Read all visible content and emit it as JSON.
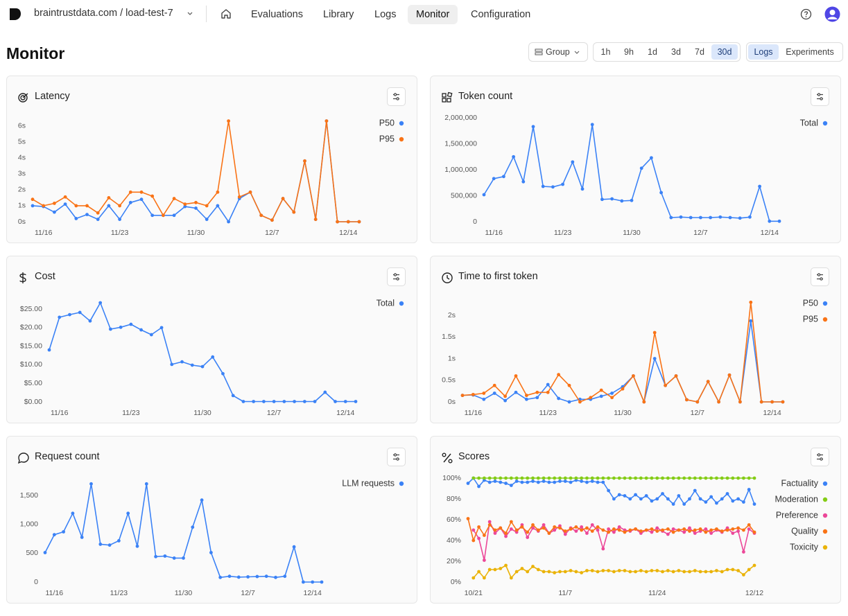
{
  "header": {
    "org_project": "braintrustdata.com / load-test-7",
    "nav": [
      "Evaluations",
      "Library",
      "Logs",
      "Monitor",
      "Configuration"
    ]
  },
  "page": {
    "title": "Monitor",
    "group": "Group",
    "ranges": [
      "1h",
      "9h",
      "1d",
      "3d",
      "7d",
      "30d"
    ],
    "views": [
      "Logs",
      "Experiments"
    ]
  },
  "chart_data": [
    {
      "type": "line",
      "title": "Latency",
      "legend": "right",
      "categories": [
        null,
        "11/16",
        null,
        null,
        null,
        null,
        null,
        null,
        "11/23",
        null,
        null,
        null,
        null,
        null,
        null,
        "11/30",
        null,
        null,
        null,
        null,
        null,
        null,
        "12/7",
        null,
        null,
        null,
        null,
        null,
        null,
        "12/14",
        null
      ],
      "ylim": [
        0,
        6.5
      ],
      "yticks": [
        {
          "value": 0,
          "label": "0s"
        },
        {
          "value": 1,
          "label": "1s"
        },
        {
          "value": 2,
          "label": "2s"
        },
        {
          "value": 3,
          "label": "3s"
        },
        {
          "value": 4,
          "label": "4s"
        },
        {
          "value": 5,
          "label": "5s"
        },
        {
          "value": 6,
          "label": "6s"
        }
      ],
      "series": [
        {
          "name": "P50",
          "color": "#3b82f6",
          "values": [
            1.0,
            0.95,
            0.6,
            1.1,
            0.2,
            0.45,
            0.15,
            1.0,
            0.15,
            1.2,
            1.4,
            0.4,
            0.4,
            0.4,
            0.95,
            0.85,
            0.15,
            1.0,
            0,
            1.45,
            1.85,
            0.4,
            0.1,
            1.45,
            0.6,
            3.8,
            0.15,
            6.3,
            0,
            0,
            0
          ]
        },
        {
          "name": "P95",
          "color": "#f97316",
          "values": [
            1.4,
            1.0,
            1.15,
            1.55,
            1.0,
            1.0,
            0.55,
            1.5,
            1.0,
            1.85,
            1.85,
            1.6,
            0.4,
            1.45,
            1.1,
            1.2,
            1.0,
            1.85,
            6.3,
            1.55,
            1.85,
            0.4,
            0.1,
            1.45,
            0.6,
            3.8,
            0.15,
            6.3,
            0,
            0,
            0
          ]
        }
      ]
    },
    {
      "type": "line",
      "title": "Token count",
      "legend": "right",
      "categories": [
        null,
        "11/16",
        null,
        null,
        null,
        null,
        null,
        null,
        "11/23",
        null,
        null,
        null,
        null,
        null,
        null,
        "11/30",
        null,
        null,
        null,
        null,
        null,
        null,
        "12/7",
        null,
        null,
        null,
        null,
        null,
        null,
        "12/14",
        null
      ],
      "ylim": [
        0,
        2000000
      ],
      "yticks": [
        0,
        {
          "value": 500000,
          "label": "500,000"
        },
        {
          "value": 1000000,
          "label": "1,000,000"
        },
        {
          "value": 1500000,
          "label": "1,500,000"
        },
        {
          "value": 2000000,
          "label": "2,000,000"
        }
      ],
      "series": [
        {
          "name": "Total",
          "color": "#3b82f6",
          "values": [
            520000,
            830000,
            870000,
            1250000,
            770000,
            1830000,
            680000,
            670000,
            720000,
            1150000,
            630000,
            1870000,
            430000,
            440000,
            400000,
            410000,
            1030000,
            1230000,
            560000,
            80000,
            90000,
            80000,
            80000,
            80000,
            90000,
            80000,
            70000,
            90000,
            680000,
            10000,
            10000
          ]
        }
      ]
    },
    {
      "type": "line",
      "title": "Cost",
      "legend": "right",
      "categories": [
        null,
        "11/16",
        null,
        null,
        null,
        null,
        null,
        null,
        "11/23",
        null,
        null,
        null,
        null,
        null,
        null,
        "11/30",
        null,
        null,
        null,
        null,
        null,
        null,
        "12/7",
        null,
        null,
        null,
        null,
        null,
        null,
        "12/14",
        null
      ],
      "ylim": [
        0,
        28
      ],
      "yticks": [
        {
          "value": 0,
          "label": "$0.00"
        },
        {
          "value": 5,
          "label": "$5.00"
        },
        {
          "value": 10,
          "label": "$10.00"
        },
        {
          "value": 15,
          "label": "$15.00"
        },
        {
          "value": 20,
          "label": "$20.00"
        },
        {
          "value": 25,
          "label": "$25.00"
        }
      ],
      "series": [
        {
          "name": "Total",
          "color": "#3b82f6",
          "values": [
            14.0,
            22.8,
            23.5,
            24.1,
            21.8,
            26.7,
            19.6,
            20.1,
            20.9,
            19.4,
            18.1,
            20.0,
            10.1,
            10.8,
            9.9,
            9.5,
            12.1,
            7.6,
            1.7,
            0.1,
            0.1,
            0.1,
            0.1,
            0.1,
            0.1,
            0.1,
            0.1,
            2.6,
            0.1,
            0.1,
            0.1
          ]
        }
      ]
    },
    {
      "type": "line",
      "title": "Time to first token",
      "legend": "right",
      "categories": [
        null,
        "11/16",
        null,
        null,
        null,
        null,
        null,
        null,
        "11/23",
        null,
        null,
        null,
        null,
        null,
        null,
        "11/30",
        null,
        null,
        null,
        null,
        null,
        null,
        "12/7",
        null,
        null,
        null,
        null,
        null,
        null,
        "12/14",
        null
      ],
      "ylim": [
        0,
        2.4
      ],
      "yticks": [
        {
          "value": 0,
          "label": "0s"
        },
        {
          "value": 0.5,
          "label": "0.5s"
        },
        {
          "value": 1,
          "label": "1s"
        },
        {
          "value": 1.5,
          "label": "1.5s"
        },
        {
          "value": 2,
          "label": "2s"
        }
      ],
      "series": [
        {
          "name": "P50",
          "color": "#3b82f6",
          "values": [
            0.15,
            0.16,
            0.06,
            0.2,
            0.03,
            0.22,
            0.06,
            0.1,
            0.4,
            0.08,
            0,
            0.06,
            0.06,
            0.13,
            0.2,
            0.35,
            0.6,
            0,
            1.0,
            0.38,
            0.6,
            0.05,
            0,
            0.47,
            0,
            0.62,
            0,
            1.87,
            0,
            0,
            0
          ]
        },
        {
          "name": "P95",
          "color": "#f97316",
          "values": [
            0.15,
            0.17,
            0.2,
            0.38,
            0.13,
            0.6,
            0.15,
            0.22,
            0.22,
            0.63,
            0.38,
            0,
            0.1,
            0.27,
            0.1,
            0.3,
            0.6,
            0,
            1.6,
            0.38,
            0.6,
            0.05,
            0,
            0.47,
            0,
            0.62,
            0,
            2.3,
            0,
            0,
            0
          ]
        }
      ]
    },
    {
      "type": "line",
      "title": "Request count",
      "legend": "right",
      "categories": [
        null,
        "11/16",
        null,
        null,
        null,
        null,
        null,
        null,
        "11/23",
        null,
        null,
        null,
        null,
        null,
        null,
        "11/30",
        null,
        null,
        null,
        null,
        null,
        null,
        "12/7",
        null,
        null,
        null,
        null,
        null,
        null,
        "12/14",
        null
      ],
      "ylim": [
        0,
        1800
      ],
      "yticks": [
        0,
        500,
        {
          "value": 1000,
          "label": "1,000"
        },
        {
          "value": 1500,
          "label": "1,500"
        }
      ],
      "series": [
        {
          "name": "LLM requests",
          "color": "#3b82f6",
          "values": [
            510,
            820,
            870,
            1190,
            775,
            1700,
            655,
            640,
            715,
            1190,
            620,
            1700,
            440,
            450,
            415,
            415,
            950,
            1420,
            510,
            80,
            100,
            85,
            90,
            95,
            100,
            80,
            100,
            610,
            0,
            0,
            0
          ]
        }
      ]
    },
    {
      "type": "line",
      "title": "Scores",
      "legend": "right",
      "categories": [
        null,
        "10/21",
        null,
        null,
        null,
        null,
        null,
        null,
        null,
        null,
        null,
        null,
        null,
        null,
        null,
        null,
        null,
        null,
        "11/7",
        null,
        null,
        null,
        null,
        null,
        null,
        null,
        null,
        null,
        null,
        null,
        null,
        null,
        null,
        null,
        null,
        "11/24",
        null,
        null,
        null,
        null,
        null,
        null,
        null,
        null,
        null,
        null,
        null,
        null,
        null,
        null,
        null,
        null,
        null,
        "12/12"
      ],
      "ylim": [
        0,
        100
      ],
      "yticks": [
        {
          "value": 0,
          "label": "0%"
        },
        {
          "value": 20,
          "label": "20%"
        },
        {
          "value": 40,
          "label": "40%"
        },
        {
          "value": 60,
          "label": "60%"
        },
        {
          "value": 80,
          "label": "80%"
        },
        {
          "value": 100,
          "label": "100%"
        }
      ],
      "series": [
        {
          "name": "Factuality",
          "color": "#3b82f6",
          "values": [
            95,
            100,
            92,
            98,
            96,
            97,
            96,
            95,
            93,
            97,
            96,
            96,
            97,
            96,
            97,
            96,
            96,
            97,
            97,
            96,
            98,
            97,
            96,
            97,
            96,
            96,
            88,
            80,
            84,
            83,
            80,
            84,
            80,
            83,
            78,
            80,
            85,
            80,
            75,
            83,
            75,
            80,
            88,
            80,
            77,
            82,
            76,
            80,
            85,
            78,
            80,
            77,
            89,
            75
          ]
        },
        {
          "name": "Moderation",
          "color": "#84cc16",
          "values": [
            null,
            100,
            100,
            100,
            100,
            100,
            100,
            100,
            100,
            100,
            100,
            100,
            100,
            100,
            100,
            100,
            100,
            100,
            100,
            100,
            100,
            100,
            100,
            100,
            100,
            100,
            100,
            100,
            100,
            100,
            100,
            100,
            100,
            100,
            100,
            100,
            100,
            100,
            100,
            100,
            100,
            100,
            100,
            100,
            100,
            100,
            100,
            100,
            100,
            100,
            100,
            100,
            100,
            100
          ]
        },
        {
          "name": "Preference",
          "color": "#ec4899",
          "values": [
            null,
            50,
            42,
            21,
            58,
            47,
            52,
            44,
            51,
            48,
            55,
            43,
            52,
            49,
            55,
            47,
            50,
            54,
            46,
            52,
            49,
            53,
            47,
            55,
            50,
            32,
            51,
            48,
            53,
            50,
            49,
            51,
            47,
            50,
            48,
            52,
            49,
            46,
            51,
            50,
            48,
            52,
            47,
            49,
            51,
            47,
            50,
            48,
            52,
            47,
            49,
            29,
            51,
            47
          ]
        },
        {
          "name": "Quality",
          "color": "#f97316",
          "values": [
            61,
            40,
            53,
            45,
            55,
            50,
            52,
            47,
            58,
            50,
            53,
            48,
            55,
            50,
            52,
            47,
            53,
            52,
            49,
            51,
            53,
            50,
            52,
            49,
            53,
            50,
            48,
            51,
            50,
            48,
            50,
            51,
            49,
            50,
            51,
            49,
            50,
            51,
            48,
            50,
            51,
            49,
            50,
            51,
            48,
            50,
            51,
            49,
            50,
            51,
            52,
            50,
            55,
            48
          ]
        },
        {
          "name": "Toxicity",
          "color": "#eab308",
          "values": [
            null,
            4,
            10,
            4,
            12,
            12,
            13,
            16,
            4,
            10,
            13,
            10,
            15,
            12,
            10,
            10,
            9,
            10,
            10,
            11,
            10,
            9,
            11,
            11,
            10,
            11,
            11,
            10,
            11,
            11,
            10,
            10,
            11,
            10,
            11,
            11,
            10,
            11,
            10,
            11,
            10,
            10,
            11,
            10,
            10,
            10,
            11,
            10,
            12,
            12,
            11,
            7,
            12,
            16
          ]
        }
      ]
    }
  ]
}
